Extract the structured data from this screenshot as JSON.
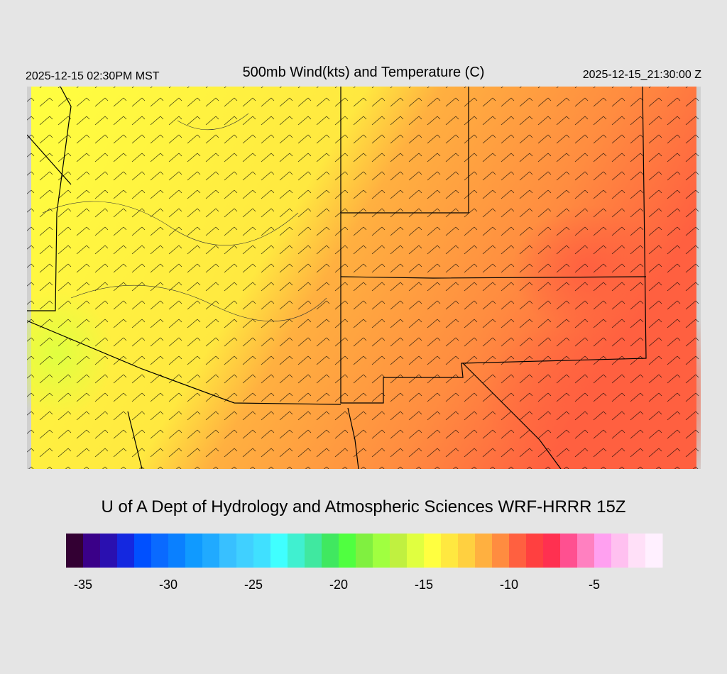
{
  "header": {
    "valid_time_local": "2025-12-15 02:30PM MST",
    "title": "500mb Wind(kts) and Temperature (C)",
    "valid_time_utc": "2025-12-15_21:30:00 Z"
  },
  "footer": {
    "credit": "U of A Dept of Hydrology and Atmospheric Sciences WRF-HRRR 15Z"
  },
  "legend": {
    "levels": [
      -36,
      -35,
      -34,
      -33,
      -32,
      -31,
      -30,
      -29,
      -28,
      -27,
      -26,
      -25,
      -24,
      -23,
      -22,
      -21,
      -20,
      -19,
      -18,
      -17,
      -16,
      -15,
      -14,
      -13,
      -12,
      -11,
      -10,
      -9,
      -8,
      -7,
      -6,
      -5,
      -4,
      -3,
      -2,
      -1
    ],
    "colors": [
      "#330033",
      "#3a0088",
      "#2a10b0",
      "#1428e0",
      "#0050ff",
      "#0a6aff",
      "#0a80ff",
      "#109aff",
      "#20aaff",
      "#38c0ff",
      "#40d0ff",
      "#40e0ff",
      "#40ffff",
      "#40f0d0",
      "#40e8a0",
      "#40e860",
      "#50ff40",
      "#80f040",
      "#a0ff40",
      "#c0f040",
      "#e0ff40",
      "#ffff40",
      "#ffe840",
      "#ffd040",
      "#ffb040",
      "#ff8c40",
      "#ff6040",
      "#ff4040",
      "#ff3050",
      "#ff5090",
      "#ff80c0",
      "#ffa0f0",
      "#ffc0f0",
      "#ffe0f8",
      "#fff0ff"
    ],
    "ticks": [
      -35,
      -30,
      -25,
      -20,
      -15,
      -10,
      -5
    ]
  }
}
